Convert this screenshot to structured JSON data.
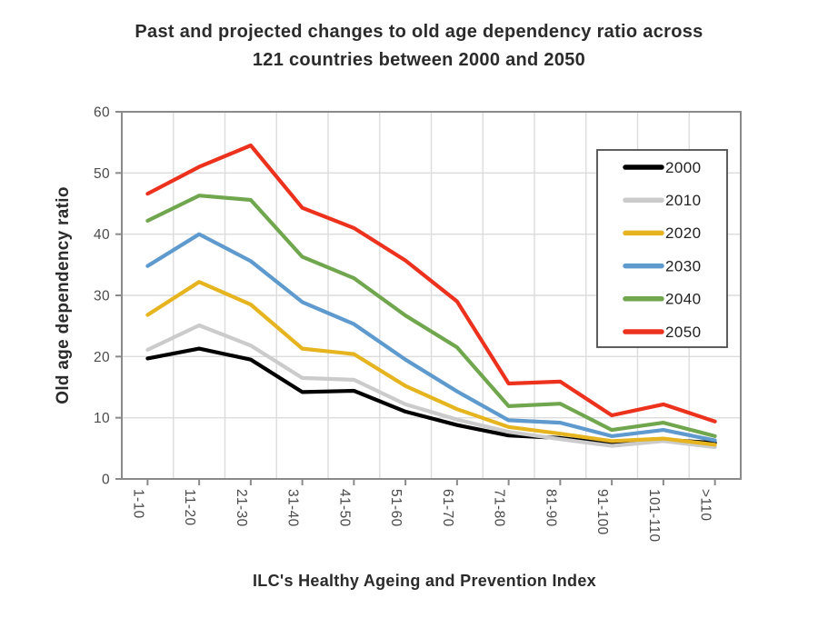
{
  "title": {
    "line1": "Past and projected changes to old age dependency ratio across",
    "line2": "121 countries between 2000 and 2050"
  },
  "chart_data": {
    "type": "line",
    "title": "Past and projected changes to old age dependency ratio across 121 countries between 2000 and 2050",
    "xlabel": "ILC's Healthy Ageing and Prevention Index",
    "ylabel": "Old age dependency ratio",
    "ylim": [
      0,
      60
    ],
    "yticks": [
      0,
      10,
      20,
      30,
      40,
      50,
      60
    ],
    "grid": true,
    "legend_position": "upper right",
    "categories": [
      "1-10",
      "11-20",
      "21-30",
      "31-40",
      "41-50",
      "51-60",
      "61-70",
      "71-80",
      "81-90",
      "91-100",
      "101-110",
      ">110"
    ],
    "series": [
      {
        "name": "2000",
        "color": "#000000",
        "values": [
          19.7,
          21.3,
          19.5,
          14.2,
          14.4,
          11.0,
          8.8,
          7.1,
          6.7,
          5.7,
          6.4,
          5.9
        ]
      },
      {
        "name": "2010",
        "color": "#cbcbcb",
        "values": [
          21.1,
          25.1,
          21.8,
          16.5,
          16.2,
          12.2,
          9.7,
          7.7,
          6.5,
          5.4,
          6.2,
          5.2
        ]
      },
      {
        "name": "2020",
        "color": "#e5b41f",
        "values": [
          26.8,
          32.2,
          28.5,
          21.3,
          20.4,
          15.2,
          11.4,
          8.5,
          7.4,
          6.2,
          6.6,
          5.6
        ]
      },
      {
        "name": "2030",
        "color": "#5e9ace",
        "values": [
          34.8,
          40.0,
          35.6,
          28.9,
          25.3,
          19.5,
          14.3,
          9.6,
          9.2,
          7.0,
          8.0,
          6.3
        ]
      },
      {
        "name": "2040",
        "color": "#70a74e",
        "values": [
          42.2,
          46.3,
          45.6,
          36.3,
          32.8,
          26.7,
          21.5,
          11.9,
          12.3,
          8.0,
          9.2,
          7.0
        ]
      },
      {
        "name": "2050",
        "color": "#ec311d",
        "values": [
          46.6,
          51.0,
          54.5,
          44.3,
          41.0,
          35.7,
          29.0,
          15.6,
          15.9,
          10.4,
          12.2,
          9.4
        ]
      }
    ]
  },
  "colors": {
    "gridline": "#dcdcdc",
    "plot_border": "#8a8a8a",
    "tick": "#8a8a8a",
    "legend_border": "#4d4d4d"
  }
}
